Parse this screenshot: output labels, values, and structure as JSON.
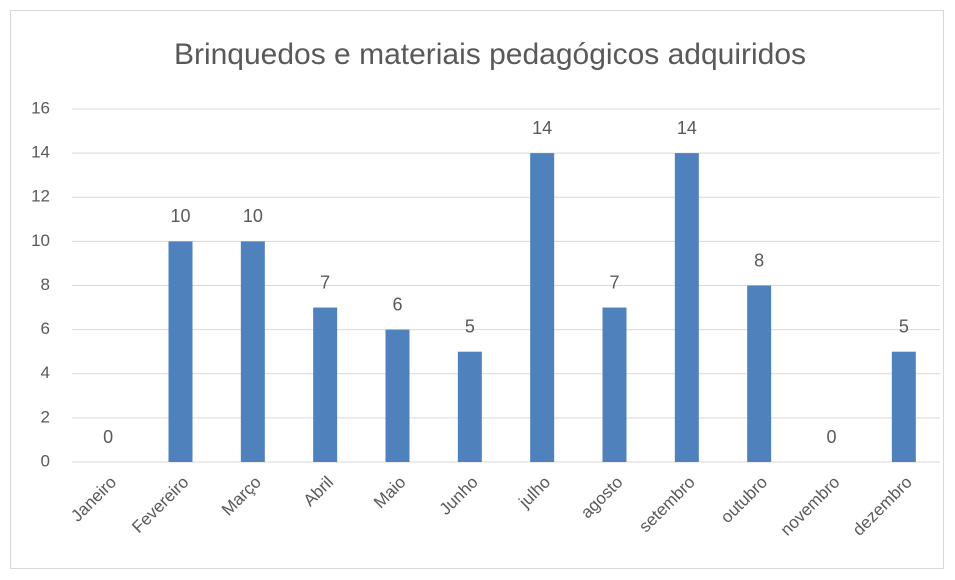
{
  "chart_data": {
    "type": "bar",
    "title": "Brinquedos e materiais pedagógicos adquiridos",
    "categories": [
      "Janeiro",
      "Fevereiro",
      "Março",
      "Abril",
      "Maio",
      "Junho",
      "julho",
      "agosto",
      "setembro",
      "outubro",
      "novembro",
      "dezembro"
    ],
    "values": [
      0,
      10,
      10,
      7,
      6,
      5,
      14,
      7,
      14,
      8,
      0,
      5
    ],
    "color": "#4f81bd",
    "ylim": [
      0,
      16
    ],
    "yticks": [
      0,
      2,
      4,
      6,
      8,
      10,
      12,
      14,
      16
    ],
    "grid": true
  }
}
